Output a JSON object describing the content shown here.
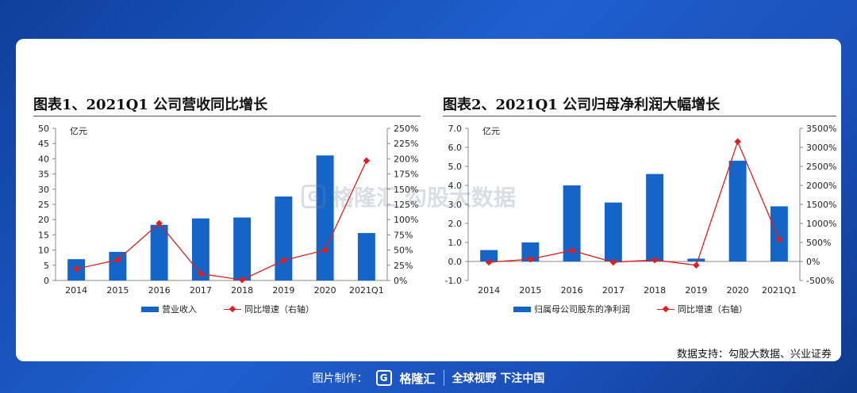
{
  "colors": {
    "bar": "#1565c8",
    "line": "#e01e1e",
    "background": "#1a4fb8"
  },
  "chart_data": [
    {
      "type": "bar",
      "title": "图表1、2021Q1 公司营收同比增长",
      "unit_label": "亿元",
      "categories": [
        "2014",
        "2015",
        "2016",
        "2017",
        "2018",
        "2019",
        "2020",
        "2021Q1"
      ],
      "series": [
        {
          "name": "营业收入",
          "axis": "left",
          "type": "bar",
          "values": [
            7,
            9.4,
            18.3,
            20.4,
            20.7,
            27.6,
            41.1,
            15.6
          ]
        },
        {
          "name": "同比增速（右轴）",
          "axis": "right",
          "type": "line",
          "values": [
            19,
            34,
            94,
            11,
            1,
            33,
            50,
            197
          ]
        }
      ],
      "y_left": {
        "min": 0,
        "max": 50,
        "ticks": [
          "0",
          "5",
          "10",
          "15",
          "20",
          "25",
          "30",
          "35",
          "40",
          "45",
          "50"
        ]
      },
      "y_right": {
        "min": 0,
        "max": 250,
        "ticks": [
          "0%",
          "25%",
          "50%",
          "75%",
          "100%",
          "125%",
          "150%",
          "175%",
          "200%",
          "225%",
          "250%"
        ]
      },
      "grid": false,
      "legend": "bottom"
    },
    {
      "type": "bar",
      "title": "图表2、2021Q1 公司归母净利润大幅增长",
      "unit_label": "亿元",
      "categories": [
        "2014",
        "2015",
        "2016",
        "2017",
        "2018",
        "2019",
        "2020",
        "2021Q1"
      ],
      "series": [
        {
          "name": "归属母公司股东的净利润",
          "axis": "left",
          "type": "bar",
          "values": [
            0.6,
            1.0,
            4.0,
            3.1,
            4.6,
            0.15,
            5.3,
            2.9
          ]
        },
        {
          "name": "同比增速（右轴）",
          "axis": "right",
          "type": "line",
          "values": [
            -20,
            60,
            290,
            -20,
            40,
            -100,
            3150,
            580
          ]
        }
      ],
      "y_left": {
        "min": -1.0,
        "max": 7.0,
        "ticks": [
          "-1.0",
          "0.0",
          "1.0",
          "2.0",
          "3.0",
          "4.0",
          "5.0",
          "6.0",
          "7.0"
        ]
      },
      "y_right": {
        "min": -500,
        "max": 3500,
        "ticks": [
          "-500%",
          "0%",
          "500%",
          "1000%",
          "1500%",
          "2000%",
          "2500%",
          "3000%",
          "3500%"
        ]
      },
      "grid": false,
      "legend": "bottom"
    }
  ],
  "source": "数据支持：勾股大数据、兴业证券",
  "watermark": {
    "logo": "G",
    "brand": "格隆汇",
    "text": "勾股大数据"
  },
  "footer": {
    "prefix": "图片制作：",
    "logo": "G",
    "brand": "格隆汇",
    "slogan": "全球视野 下注中国"
  }
}
